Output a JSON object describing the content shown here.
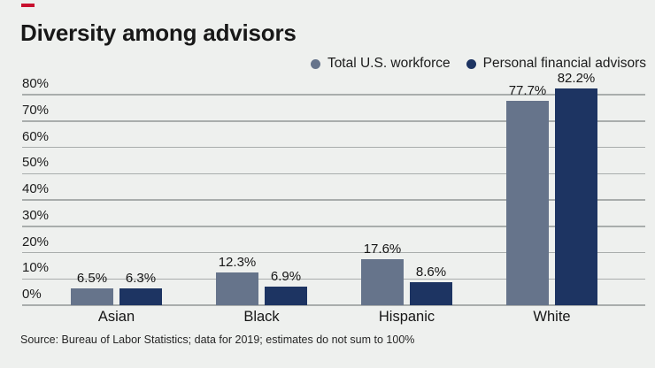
{
  "page": {
    "background_color": "#eef0ee",
    "accent_dash_color": "#c8102e",
    "gridline_color": "#a9adac"
  },
  "title": "Diversity among advisors",
  "legend": [
    {
      "label": "Total U.S. workforce",
      "color": "#66748b"
    },
    {
      "label": "Personal financial advisors",
      "color": "#1d3462"
    }
  ],
  "source": "Source: Bureau of Labor Statistics; data for 2019; estimates do not sum to 100%",
  "chart_data": {
    "type": "bar",
    "title": "Diversity among advisors",
    "categories": [
      "Asian",
      "Black",
      "Hispanic",
      "White"
    ],
    "series": [
      {
        "name": "Total U.S. workforce",
        "color": "#66748b",
        "values": [
          6.5,
          12.3,
          17.6,
          77.7
        ]
      },
      {
        "name": "Personal financial advisors",
        "color": "#1d3462",
        "values": [
          6.3,
          6.9,
          8.6,
          82.2
        ]
      }
    ],
    "value_labels": [
      [
        "6.5%",
        "12.3%",
        "17.6%",
        "77.7%"
      ],
      [
        "6.3%",
        "6.9%",
        "8.6%",
        "82.2%"
      ]
    ],
    "xlabel": "",
    "ylabel": "",
    "y_ticks": [
      "0%",
      "10%",
      "20%",
      "30%",
      "40%",
      "50%",
      "60%",
      "70%",
      "80%"
    ],
    "ylim": [
      0,
      80
    ],
    "grid": true,
    "legend_position": "top-right"
  }
}
